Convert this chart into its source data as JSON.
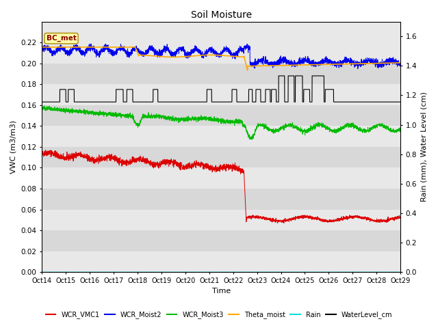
{
  "title": "Soil Moisture",
  "xlabel": "Time",
  "ylabel_left": "VWC (m3/m3)",
  "ylabel_right": "Rain (mm), Water Level (cm)",
  "xlim": [
    0,
    15
  ],
  "ylim_left": [
    0.0,
    0.24
  ],
  "ylim_right": [
    0.0,
    1.7
  ],
  "xtick_labels": [
    "Oct 14",
    "Oct 15",
    "Oct 16",
    "Oct 17",
    "Oct 18",
    "Oct 19",
    "Oct 20",
    "Oct 21",
    "Oct 22",
    "Oct 23",
    "Oct 24",
    "Oct 25",
    "Oct 26",
    "Oct 27",
    "Oct 28",
    "Oct 29"
  ],
  "yticks_left": [
    0.0,
    0.02,
    0.04,
    0.06,
    0.08,
    0.1,
    0.12,
    0.14,
    0.16,
    0.18,
    0.2,
    0.22
  ],
  "yticks_right": [
    0.0,
    0.2,
    0.4,
    0.6,
    0.8,
    1.0,
    1.2,
    1.4,
    1.6
  ],
  "band_colors": [
    "#e8e8e8",
    "#d8d8d8"
  ],
  "annotation_text": "BC_met",
  "colors": {
    "WCR_VMC1": "#dd0000",
    "WCR_Moist2": "#0000ee",
    "WCR_Moist3": "#00bb00",
    "Theta_moist": "#ffaa00",
    "Rain": "#00dddd",
    "WaterLevel_cm": "#000000"
  },
  "legend_labels": [
    "WCR_VMC1",
    "WCR_Moist2",
    "WCR_Moist3",
    "Theta_moist",
    "Rain",
    "WaterLevel_cm"
  ]
}
